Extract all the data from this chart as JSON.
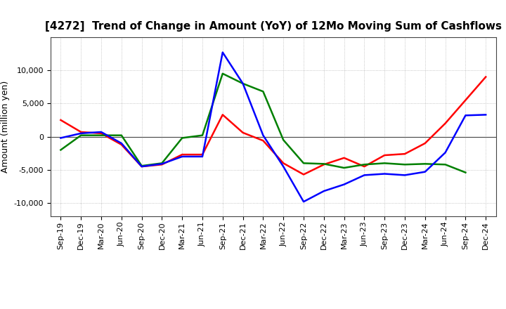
{
  "title": "[4272]  Trend of Change in Amount (YoY) of 12Mo Moving Sum of Cashflows",
  "ylabel": "Amount (million yen)",
  "x_labels": [
    "Sep-19",
    "Dec-19",
    "Mar-20",
    "Jun-20",
    "Sep-20",
    "Dec-20",
    "Mar-21",
    "Jun-21",
    "Sep-21",
    "Dec-21",
    "Mar-22",
    "Jun-22",
    "Sep-22",
    "Dec-22",
    "Mar-23",
    "Jun-23",
    "Sep-23",
    "Dec-23",
    "Mar-24",
    "Jun-24",
    "Sep-24",
    "Dec-24"
  ],
  "operating": [
    2500,
    700,
    500,
    -1200,
    -4500,
    -4200,
    -2700,
    -2700,
    3300,
    600,
    -600,
    -4000,
    -5700,
    -4200,
    -3200,
    -4500,
    -2800,
    -2600,
    -1000,
    2000,
    5500,
    9000
  ],
  "investing": [
    -2000,
    200,
    200,
    200,
    -4400,
    -4000,
    -200,
    200,
    9500,
    8000,
    6800,
    -500,
    -4000,
    -4100,
    -4700,
    -4200,
    -4000,
    -4200,
    -4100,
    -4200,
    -5400,
    null
  ],
  "free": [
    -200,
    500,
    700,
    -1000,
    -4500,
    -4100,
    -3000,
    -3000,
    12700,
    8000,
    200,
    -4500,
    -9800,
    -8200,
    -7200,
    -5800,
    -5600,
    -5800,
    -5300,
    -2400,
    3200,
    3300
  ],
  "ylim": [
    -12000,
    15000
  ],
  "yticks": [
    -10000,
    -5000,
    0,
    5000,
    10000
  ],
  "operating_color": "#ff0000",
  "investing_color": "#008000",
  "free_color": "#0000ff",
  "background_color": "#ffffff",
  "grid_color": "#999999",
  "title_fontsize": 11,
  "axis_fontsize": 9,
  "tick_fontsize": 8,
  "legend_fontsize": 9,
  "linewidth": 1.8
}
